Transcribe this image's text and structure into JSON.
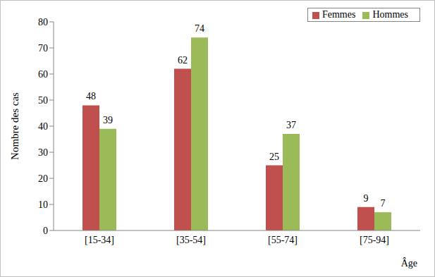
{
  "chart_data": {
    "type": "bar",
    "categories": [
      "[15-34]",
      "[35-54]",
      "[55-74]",
      "[75-94]"
    ],
    "series": [
      {
        "name": "Femmes",
        "color": "#c0504d",
        "values": [
          48,
          62,
          25,
          9
        ]
      },
      {
        "name": "Hommes",
        "color": "#9bbb59",
        "values": [
          39,
          74,
          37,
          7
        ]
      }
    ],
    "ylim": [
      0,
      80
    ],
    "yticks": [
      0,
      10,
      20,
      30,
      40,
      50,
      60,
      70,
      80
    ],
    "xlabel": "Âge",
    "ylabel": "Nombre des cas",
    "legend": "upper right",
    "data_labels": true,
    "grid": false
  }
}
